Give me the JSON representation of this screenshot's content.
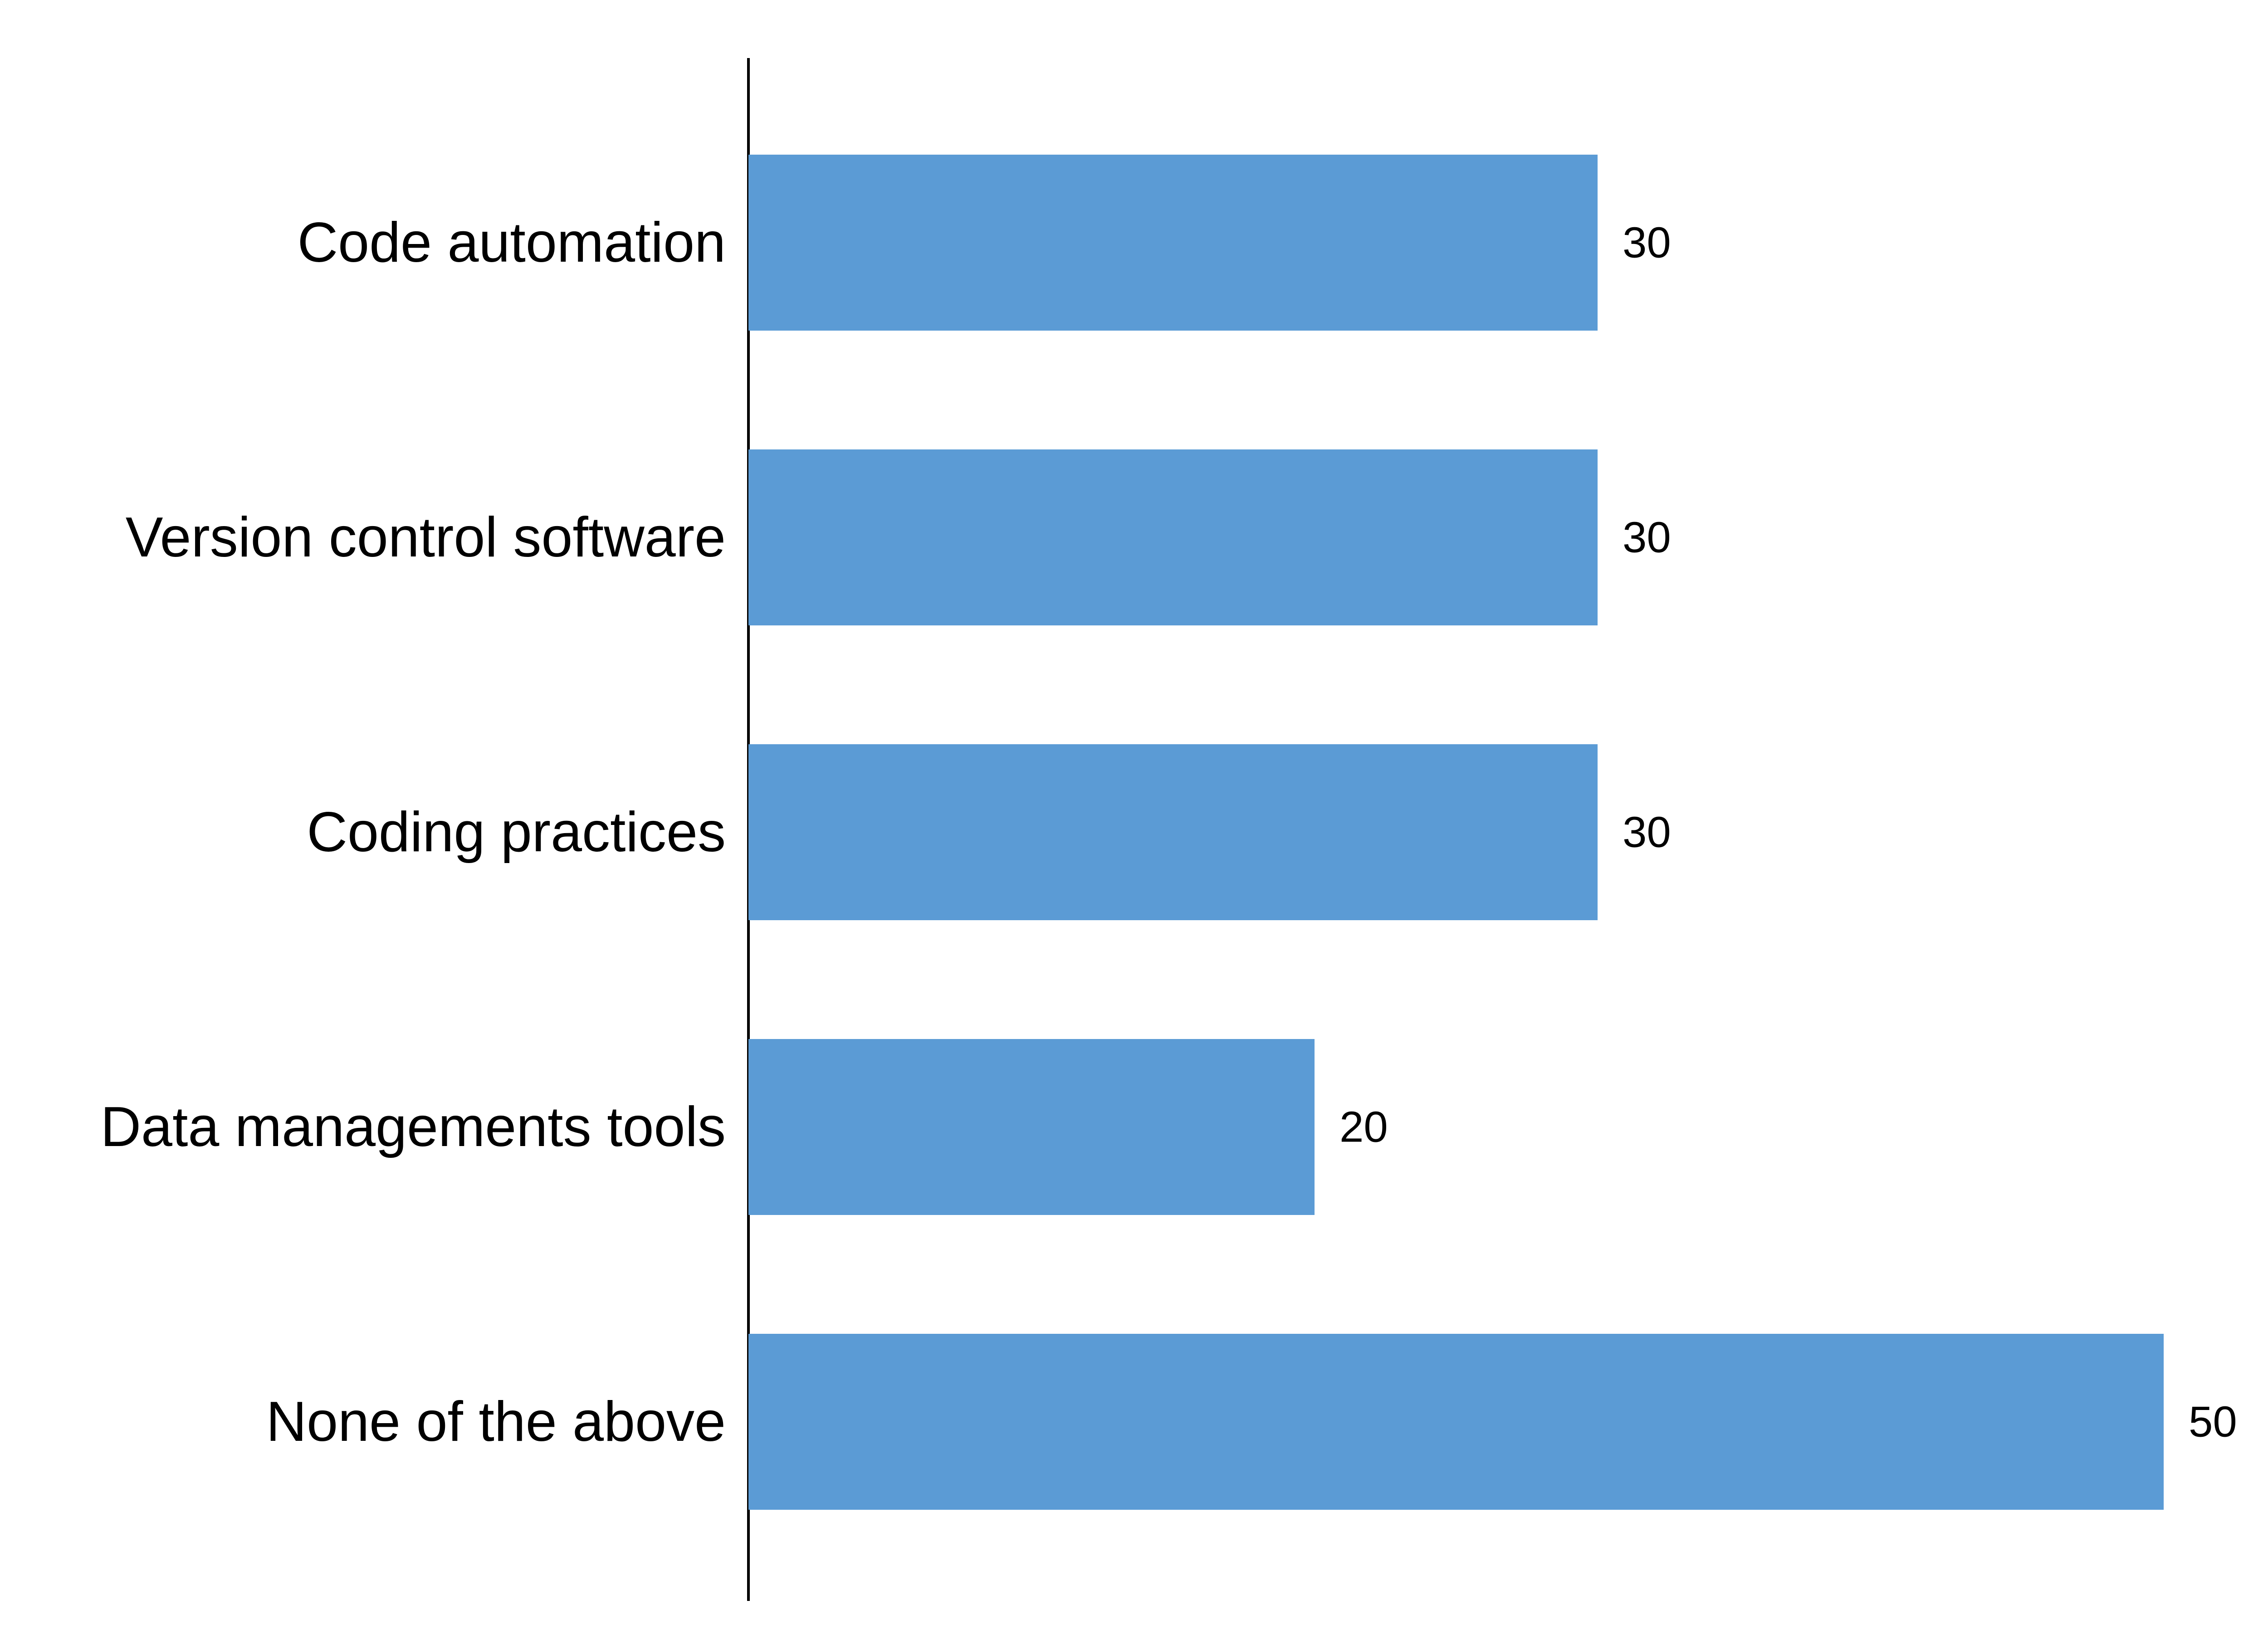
{
  "chart_data": {
    "type": "bar",
    "orientation": "horizontal",
    "categories": [
      "Code automation",
      "Version control software",
      "Coding practices",
      "Data managements tools",
      "None of the above"
    ],
    "values": [
      30,
      30,
      30,
      20,
      50
    ],
    "title": "",
    "xlabel": "",
    "ylabel": "",
    "xlim": [
      0,
      50
    ],
    "grid": false,
    "legend": "none",
    "bar_color": "#5b9bd5"
  }
}
